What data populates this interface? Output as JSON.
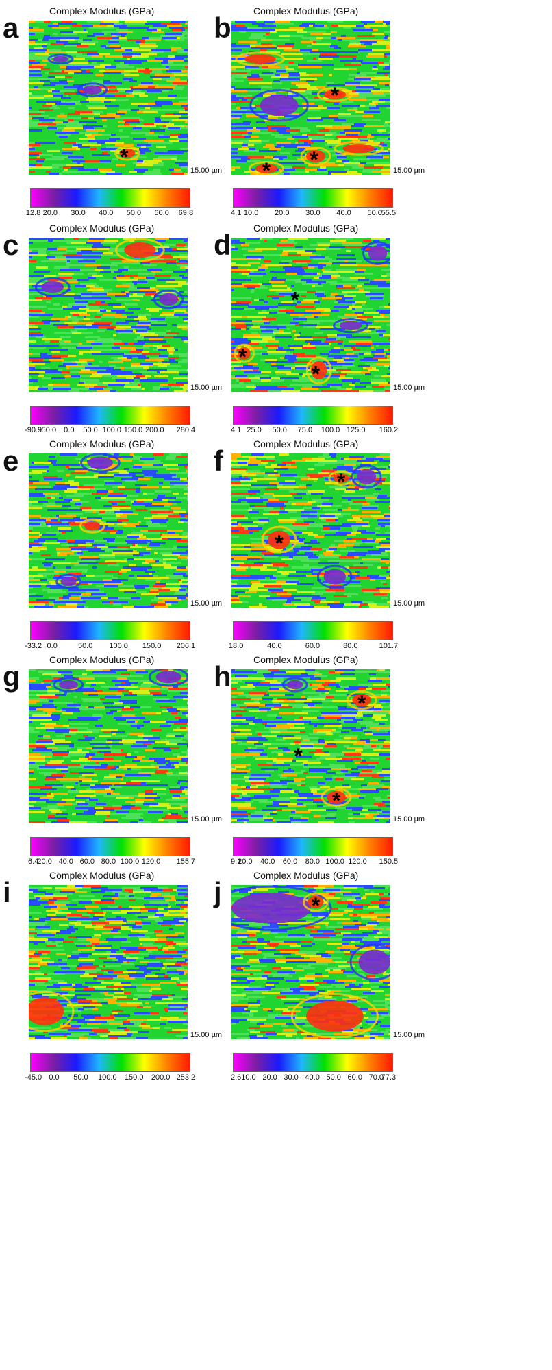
{
  "chart_data": [
    {
      "type": "heatmap",
      "letter": "a",
      "title": "Complex Modulus (GPa)",
      "scale": "15.00 µm",
      "ticks": [
        "12.8",
        "20.0",
        "30.0",
        "40.0",
        "50.0",
        "60.0",
        "69.8"
      ],
      "range": [
        12.8,
        69.8
      ],
      "markers": 1
    },
    {
      "type": "heatmap",
      "letter": "b",
      "title": "Complex Modulus (GPa)",
      "scale": "15.00 µm",
      "ticks": [
        "4.1",
        "10.0",
        "20.0",
        "30.0",
        "40.0",
        "50.0",
        "55.5"
      ],
      "range": [
        4.1,
        55.5
      ],
      "markers": 3
    },
    {
      "type": "heatmap",
      "letter": "c",
      "title": "Complex Modulus (GPa)",
      "scale": "15.00 µm",
      "ticks": [
        "-90.9",
        "-50.0",
        "0.0",
        "50.0",
        "100.0",
        "150.0",
        "200.0",
        "280.4"
      ],
      "range": [
        -90.9,
        280.4
      ],
      "markers": 0
    },
    {
      "type": "heatmap",
      "letter": "d",
      "title": "Complex Modulus (GPa)",
      "scale": "15.00 µm",
      "ticks": [
        "4.1",
        "25.0",
        "50.0",
        "75.0",
        "100.0",
        "125.0",
        "160.2"
      ],
      "range": [
        4.1,
        160.2
      ],
      "markers": 3
    },
    {
      "type": "heatmap",
      "letter": "e",
      "title": "Complex Modulus (GPa)",
      "scale": "15.00 µm",
      "ticks": [
        "-33.2",
        "0.0",
        "50.0",
        "100.0",
        "150.0",
        "206.1"
      ],
      "range": [
        -33.2,
        206.1
      ],
      "markers": 0
    },
    {
      "type": "heatmap",
      "letter": "f",
      "title": "Complex Modulus (GPa)",
      "scale": "15.00 µm",
      "ticks": [
        "18.0",
        "40.0",
        "60.0",
        "80.0",
        "101.7"
      ],
      "range": [
        18.0,
        101.7
      ],
      "markers": 2
    },
    {
      "type": "heatmap",
      "letter": "g",
      "title": "Complex Modulus (GPa)",
      "scale": "15.00 µm",
      "ticks": [
        "6.4",
        "20.0",
        "40.0",
        "60.0",
        "80.0",
        "100.0",
        "120.0",
        "155.7"
      ],
      "range": [
        6.4,
        155.7
      ],
      "markers": 0
    },
    {
      "type": "heatmap",
      "letter": "h",
      "title": "Complex Modulus (GPa)",
      "scale": "15.00 µm",
      "ticks": [
        "9.1",
        "20.0",
        "40.0",
        "60.0",
        "80.0",
        "100.0",
        "120.0",
        "150.5"
      ],
      "range": [
        9.1,
        150.5
      ],
      "markers": 3
    },
    {
      "type": "heatmap",
      "letter": "i",
      "title": "Complex Modulus (GPa)",
      "scale": "15.00 µm",
      "ticks": [
        "-45.0",
        "0.0",
        "50.0",
        "100.0",
        "150.0",
        "200.0",
        "253.2"
      ],
      "range": [
        -45.0,
        253.2
      ],
      "markers": 0
    },
    {
      "type": "heatmap",
      "letter": "j",
      "title": "Complex Modulus (GPa)",
      "scale": "15.00 µm",
      "ticks": [
        "2.6",
        "10.0",
        "20.0",
        "30.0",
        "40.0",
        "50.0",
        "60.0",
        "70.0",
        "77.3"
      ],
      "range": [
        2.6,
        77.3
      ],
      "markers": 1
    }
  ],
  "marker_symbol": "*",
  "colormap": [
    "#ff00ff",
    "#7b1fa2",
    "#1a1aff",
    "#1fb6ff",
    "#00e000",
    "#ffff00",
    "#ff8000",
    "#ff1a00"
  ]
}
